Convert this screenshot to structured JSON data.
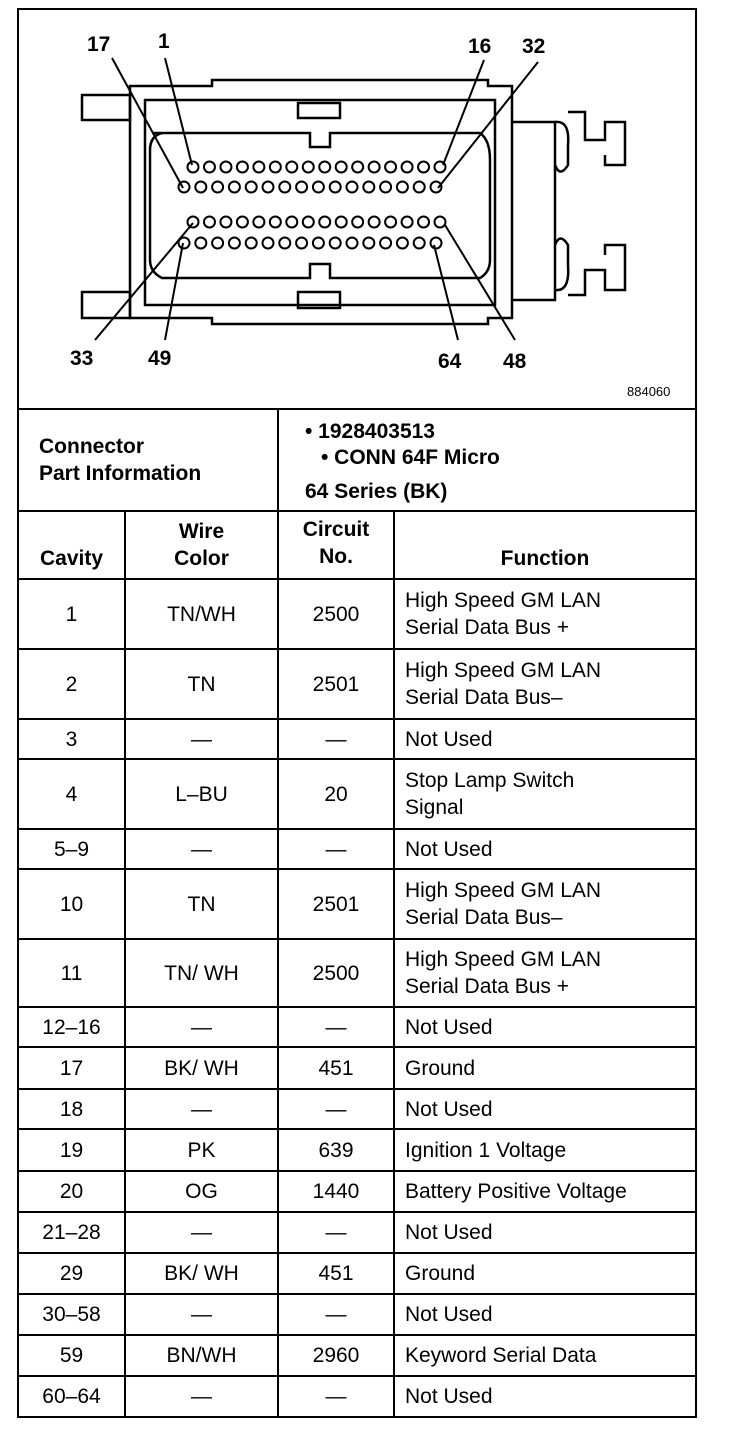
{
  "diagram": {
    "figure_number": "884060",
    "pin_labels": {
      "p17": "17",
      "p1": "1",
      "p16": "16",
      "p32": "32",
      "p33": "33",
      "p49": "49",
      "p64": "64",
      "p48": "48"
    }
  },
  "part_info": {
    "label_line1": "Connector",
    "label_line2": "Part Information",
    "bullets": [
      "• 1928403513",
      "• CONN 64F Micro",
      "64 Series (BK)"
    ]
  },
  "table": {
    "headers": {
      "cavity": "Cavity",
      "wire_color_1": "Wire",
      "wire_color_2": "Color",
      "circuit_1": "Circuit",
      "circuit_2": "No.",
      "function": "Function"
    },
    "rows": [
      {
        "cavity": "1",
        "wire": "TN/WH",
        "circuit": "2500",
        "function": [
          "High Speed GM LAN",
          "Serial Data Bus +"
        ]
      },
      {
        "cavity": "2",
        "wire": "TN",
        "circuit": "2501",
        "function": [
          "High Speed GM LAN",
          "Serial Data Bus–"
        ]
      },
      {
        "cavity": "3",
        "wire": "—",
        "circuit": "—",
        "function": [
          "Not Used"
        ]
      },
      {
        "cavity": "4",
        "wire": "L–BU",
        "circuit": "20",
        "function": [
          "Stop Lamp Switch",
          "Signal"
        ]
      },
      {
        "cavity": "5–9",
        "wire": "—",
        "circuit": "—",
        "function": [
          "Not Used"
        ]
      },
      {
        "cavity": "10",
        "wire": "TN",
        "circuit": "2501",
        "function": [
          "High Speed GM LAN",
          "Serial Data Bus–"
        ]
      },
      {
        "cavity": "11",
        "wire": "TN/ WH",
        "circuit": "2500",
        "function": [
          "High Speed GM LAN",
          "Serial Data Bus +"
        ]
      },
      {
        "cavity": "12–16",
        "wire": "—",
        "circuit": "—",
        "function": [
          "Not Used"
        ]
      },
      {
        "cavity": "17",
        "wire": "BK/ WH",
        "circuit": "451",
        "function": [
          "Ground"
        ]
      },
      {
        "cavity": "18",
        "wire": "—",
        "circuit": "—",
        "function": [
          "Not Used"
        ]
      },
      {
        "cavity": "19",
        "wire": "PK",
        "circuit": "639",
        "function": [
          "Ignition 1 Voltage"
        ]
      },
      {
        "cavity": "20",
        "wire": "OG",
        "circuit": "1440",
        "function": [
          "Battery Positive Voltage"
        ]
      },
      {
        "cavity": "21–28",
        "wire": "—",
        "circuit": "—",
        "function": [
          "Not Used"
        ]
      },
      {
        "cavity": "29",
        "wire": "BK/ WH",
        "circuit": "451",
        "function": [
          "Ground"
        ]
      },
      {
        "cavity": "30–58",
        "wire": "—",
        "circuit": "—",
        "function": [
          "Not Used"
        ]
      },
      {
        "cavity": "59",
        "wire": "BN/WH",
        "circuit": "2960",
        "function": [
          "Keyword Serial Data"
        ]
      },
      {
        "cavity": "60–64",
        "wire": "—",
        "circuit": "—",
        "function": [
          "Not Used"
        ]
      }
    ]
  }
}
